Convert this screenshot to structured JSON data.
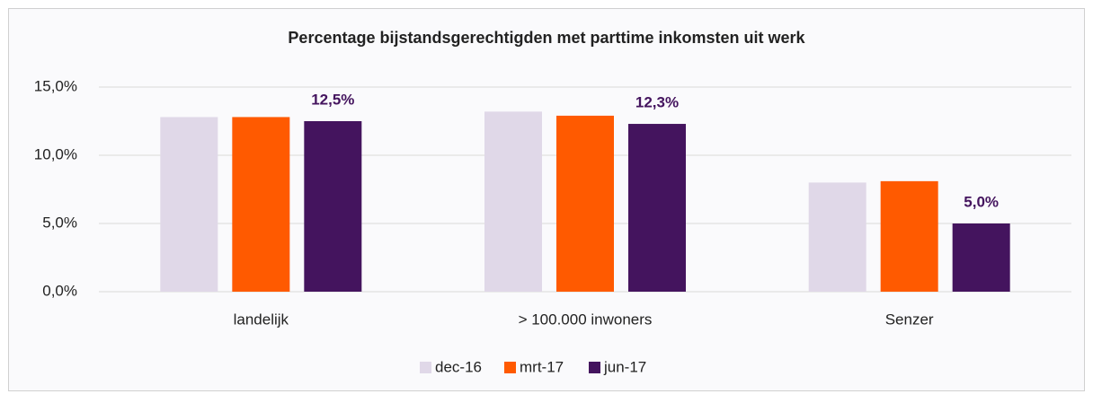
{
  "chart_data": {
    "type": "bar",
    "title": "Percentage bijstandsgerechtigden met parttime inkomsten uit werk",
    "categories": [
      "landelijk",
      "> 100.000 inwoners",
      "Senzer"
    ],
    "series": [
      {
        "name": "dec-16",
        "color": "#e0d8e8",
        "values": [
          12.8,
          13.2,
          8.0
        ]
      },
      {
        "name": "mrt-17",
        "color": "#ff5a00",
        "values": [
          12.8,
          12.9,
          8.1
        ]
      },
      {
        "name": "jun-17",
        "color": "#44145e",
        "values": [
          12.5,
          12.3,
          5.0
        ],
        "value_labels": [
          "12,5%",
          "12,3%",
          "5,0%"
        ]
      }
    ],
    "ylim": [
      0,
      15
    ],
    "yticks": [
      {
        "value": 0,
        "label": "0,0%"
      },
      {
        "value": 5,
        "label": "5,0%"
      },
      {
        "value": 10,
        "label": "10,0%"
      },
      {
        "value": 15,
        "label": "15,0%"
      }
    ],
    "grid": true,
    "legend": "bottom"
  }
}
